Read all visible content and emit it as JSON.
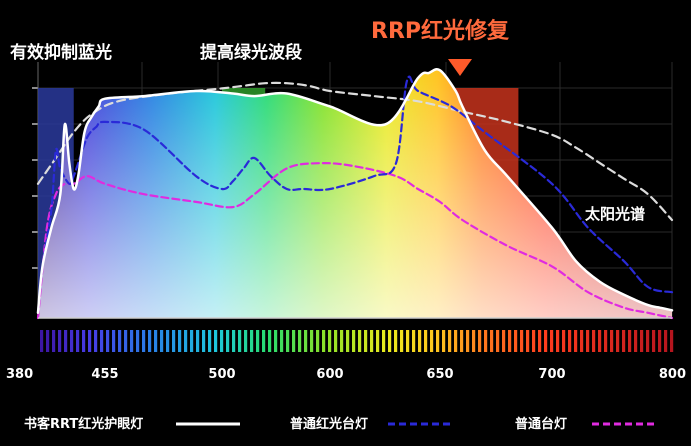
{
  "chart_data": {
    "type": "area",
    "xlabel": "",
    "ylabel": "",
    "xlim": [
      380,
      800
    ],
    "x_ticks": [
      "380",
      "455",
      "500",
      "600",
      "650",
      "700",
      "800"
    ],
    "grid": true,
    "bands": [
      {
        "label": "有效抑制蓝光",
        "x_range": [
          380,
          420
        ],
        "color": "#2a3a9c"
      },
      {
        "label": "提高绿光波段",
        "x_range": [
          500,
          540
        ],
        "color": "#2f9a2a"
      },
      {
        "label": "RRP红光修复",
        "x_range": [
          645,
          685
        ],
        "color": "#c6331c",
        "label_color": "#ff6a3d",
        "marker": "down-triangle"
      }
    ],
    "annotations": [
      {
        "text": "太阳光谱",
        "target_series": "太阳光谱"
      }
    ],
    "series": [
      {
        "name": "书客RRT红光护眼灯",
        "style": "solid",
        "color": "#ffffff",
        "filled": true,
        "x": [
          380,
          385,
          395,
          405,
          410,
          415,
          420,
          425,
          432,
          440,
          448,
          455,
          470,
          490,
          510,
          530,
          560,
          600,
          625,
          640,
          645,
          650,
          657,
          660,
          670,
          680,
          700,
          720,
          740,
          760,
          780,
          790,
          800
        ],
        "y": [
          0.02,
          0.2,
          0.35,
          0.48,
          0.75,
          0.6,
          0.5,
          0.55,
          0.72,
          0.78,
          0.82,
          0.85,
          0.86,
          0.88,
          0.87,
          0.86,
          0.87,
          0.82,
          0.75,
          0.93,
          0.95,
          0.96,
          0.88,
          0.82,
          0.65,
          0.55,
          0.35,
          0.22,
          0.14,
          0.09,
          0.05,
          0.04,
          0.03
        ]
      },
      {
        "name": "普通红光台灯",
        "style": "dashed",
        "color": "#2a2ad8",
        "x": [
          380,
          385,
          395,
          400,
          405,
          415,
          420,
          425,
          435,
          445,
          455,
          470,
          490,
          500,
          510,
          520,
          530,
          545,
          560,
          575,
          600,
          620,
          630,
          635,
          640,
          655,
          670,
          700,
          730,
          760,
          780,
          800
        ],
        "y": [
          0.02,
          0.2,
          0.42,
          0.65,
          0.58,
          0.52,
          0.55,
          0.6,
          0.7,
          0.74,
          0.76,
          0.73,
          0.55,
          0.5,
          0.53,
          0.58,
          0.62,
          0.55,
          0.5,
          0.5,
          0.5,
          0.55,
          0.6,
          0.92,
          0.88,
          0.82,
          0.72,
          0.52,
          0.35,
          0.22,
          0.12,
          0.1
        ]
      },
      {
        "name": "普通台灯",
        "style": "dashed",
        "color": "#e02be0",
        "x": [
          380,
          390,
          400,
          410,
          420,
          435,
          455,
          470,
          490,
          510,
          530,
          560,
          590,
          610,
          630,
          640,
          650,
          660,
          680,
          700,
          730,
          760,
          780,
          800
        ],
        "y": [
          0.0,
          0.35,
          0.48,
          0.52,
          0.52,
          0.55,
          0.52,
          0.48,
          0.45,
          0.43,
          0.48,
          0.58,
          0.6,
          0.59,
          0.55,
          0.5,
          0.45,
          0.38,
          0.28,
          0.2,
          0.1,
          0.04,
          0.02,
          0.0
        ]
      },
      {
        "name": "太阳光谱",
        "style": "dashed",
        "color": "#dcdcdc",
        "x": [
          380,
          400,
          420,
          440,
          460,
          480,
          500,
          520,
          540,
          560,
          580,
          600,
          620,
          640,
          660,
          680,
          700,
          720,
          740,
          760,
          780,
          800
        ],
        "y": [
          0.52,
          0.62,
          0.72,
          0.79,
          0.84,
          0.87,
          0.89,
          0.9,
          0.91,
          0.91,
          0.9,
          0.88,
          0.86,
          0.84,
          0.8,
          0.76,
          0.71,
          0.66,
          0.6,
          0.54,
          0.48,
          0.38
        ]
      }
    ]
  },
  "legend": [
    {
      "label": "书客RRT红光护眼灯",
      "color": "#ffffff",
      "style": "solid"
    },
    {
      "label": "普通红光台灯",
      "color": "#2a2ad8",
      "style": "dashed"
    },
    {
      "label": "普通台灯",
      "color": "#e02be0",
      "style": "dashed"
    }
  ]
}
